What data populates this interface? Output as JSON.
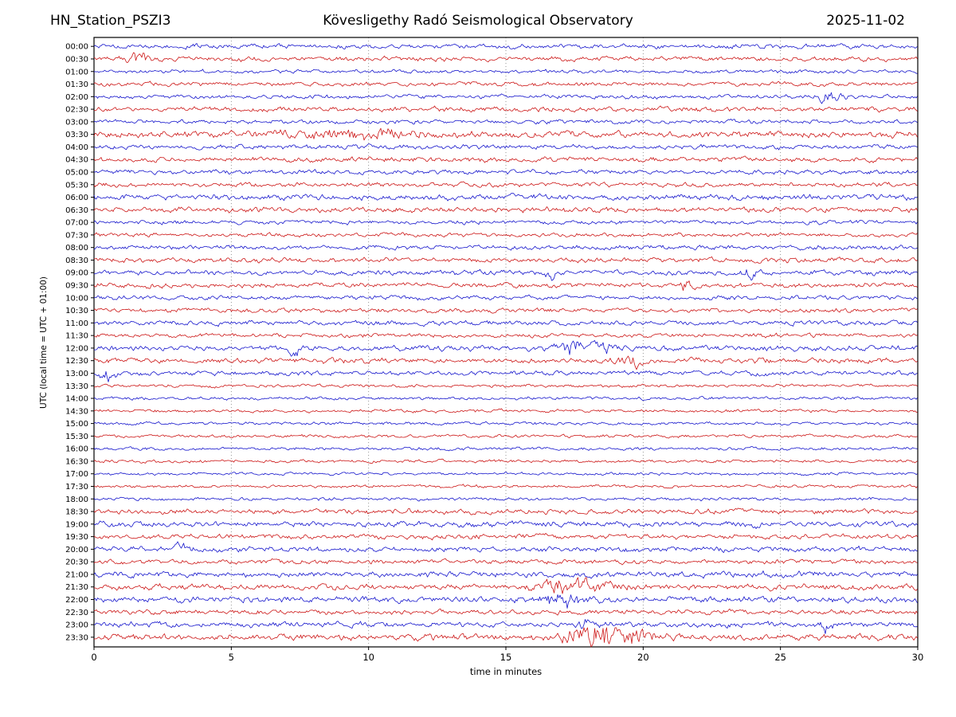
{
  "chart_data": {
    "type": "line",
    "title_left": "HN_Station_PSZI3",
    "title_center": "Kövesligethy Radó Seismological Observatory",
    "title_right": "2025-11-02",
    "xlabel": "time in minutes",
    "ylabel": "UTC (local time = UTC + 01:00)",
    "xlim": [
      0,
      30
    ],
    "x_ticks": [
      0,
      5,
      10,
      15,
      20,
      25,
      30
    ],
    "grid": "vertical-dotted",
    "legend": "none",
    "colors": {
      "blue": "#1515cc",
      "red": "#cc1515",
      "grid": "#888888",
      "frame": "#000000"
    },
    "rows": [
      {
        "label": "00:00",
        "color": "blue",
        "amplitude": 1.0
      },
      {
        "label": "00:30",
        "color": "red",
        "amplitude": 1.0
      },
      {
        "label": "01:00",
        "color": "blue",
        "amplitude": 0.8
      },
      {
        "label": "01:30",
        "color": "red",
        "amplitude": 0.9
      },
      {
        "label": "02:00",
        "color": "blue",
        "amplitude": 0.9
      },
      {
        "label": "02:30",
        "color": "red",
        "amplitude": 1.1
      },
      {
        "label": "03:00",
        "color": "blue",
        "amplitude": 0.9
      },
      {
        "label": "03:30",
        "color": "red",
        "amplitude": 1.5
      },
      {
        "label": "04:00",
        "color": "blue",
        "amplitude": 1.0
      },
      {
        "label": "04:30",
        "color": "red",
        "amplitude": 1.1
      },
      {
        "label": "05:00",
        "color": "blue",
        "amplitude": 1.0
      },
      {
        "label": "05:30",
        "color": "red",
        "amplitude": 1.0
      },
      {
        "label": "06:00",
        "color": "blue",
        "amplitude": 1.3
      },
      {
        "label": "06:30",
        "color": "red",
        "amplitude": 1.2
      },
      {
        "label": "07:00",
        "color": "blue",
        "amplitude": 0.9
      },
      {
        "label": "07:30",
        "color": "red",
        "amplitude": 0.9
      },
      {
        "label": "08:00",
        "color": "blue",
        "amplitude": 1.0
      },
      {
        "label": "08:30",
        "color": "red",
        "amplitude": 1.1
      },
      {
        "label": "09:00",
        "color": "blue",
        "amplitude": 1.1
      },
      {
        "label": "09:30",
        "color": "red",
        "amplitude": 1.1
      },
      {
        "label": "10:00",
        "color": "blue",
        "amplitude": 1.0
      },
      {
        "label": "10:30",
        "color": "red",
        "amplitude": 1.0
      },
      {
        "label": "11:00",
        "color": "blue",
        "amplitude": 1.1
      },
      {
        "label": "11:30",
        "color": "red",
        "amplitude": 0.9
      },
      {
        "label": "12:00",
        "color": "blue",
        "amplitude": 1.2
      },
      {
        "label": "12:30",
        "color": "red",
        "amplitude": 1.2
      },
      {
        "label": "13:00",
        "color": "blue",
        "amplitude": 1.0
      },
      {
        "label": "13:30",
        "color": "red",
        "amplitude": 0.7
      },
      {
        "label": "14:00",
        "color": "blue",
        "amplitude": 0.7
      },
      {
        "label": "14:30",
        "color": "red",
        "amplitude": 0.7
      },
      {
        "label": "15:00",
        "color": "blue",
        "amplitude": 0.7
      },
      {
        "label": "15:30",
        "color": "red",
        "amplitude": 0.7
      },
      {
        "label": "16:00",
        "color": "blue",
        "amplitude": 0.7
      },
      {
        "label": "16:30",
        "color": "red",
        "amplitude": 0.7
      },
      {
        "label": "17:00",
        "color": "blue",
        "amplitude": 0.65
      },
      {
        "label": "17:30",
        "color": "red",
        "amplitude": 0.7
      },
      {
        "label": "18:00",
        "color": "blue",
        "amplitude": 0.7
      },
      {
        "label": "18:30",
        "color": "red",
        "amplitude": 1.1
      },
      {
        "label": "19:00",
        "color": "blue",
        "amplitude": 1.3
      },
      {
        "label": "19:30",
        "color": "red",
        "amplitude": 1.1
      },
      {
        "label": "20:00",
        "color": "blue",
        "amplitude": 1.2
      },
      {
        "label": "20:30",
        "color": "red",
        "amplitude": 1.0
      },
      {
        "label": "21:00",
        "color": "blue",
        "amplitude": 1.3
      },
      {
        "label": "21:30",
        "color": "red",
        "amplitude": 1.3
      },
      {
        "label": "22:00",
        "color": "blue",
        "amplitude": 1.4
      },
      {
        "label": "22:30",
        "color": "red",
        "amplitude": 1.1
      },
      {
        "label": "23:00",
        "color": "blue",
        "amplitude": 1.2
      },
      {
        "label": "23:30",
        "color": "red",
        "amplitude": 1.4
      }
    ],
    "events": [
      {
        "row": 1,
        "minute": 1.6,
        "boost": 2.2,
        "width": 0.4
      },
      {
        "row": 4,
        "minute": 26.8,
        "boost": 2.5,
        "width": 0.5
      },
      {
        "row": 7,
        "minute": 9.5,
        "boost": 0.8,
        "width": 3.0
      },
      {
        "row": 18,
        "minute": 16.6,
        "boost": 3.0,
        "width": 0.15
      },
      {
        "row": 18,
        "minute": 24.0,
        "boost": 2.0,
        "width": 0.3
      },
      {
        "row": 19,
        "minute": 21.6,
        "boost": 2.8,
        "width": 0.2
      },
      {
        "row": 24,
        "minute": 7.3,
        "boost": 2.2,
        "width": 0.3
      },
      {
        "row": 24,
        "minute": 17.5,
        "boost": 2.4,
        "width": 0.8
      },
      {
        "row": 24,
        "minute": 18.6,
        "boost": 2.2,
        "width": 0.4
      },
      {
        "row": 25,
        "minute": 19.5,
        "boost": 2.2,
        "width": 0.5
      },
      {
        "row": 26,
        "minute": 0.5,
        "boost": 2.5,
        "width": 0.3
      },
      {
        "row": 40,
        "minute": 3.3,
        "boost": 2.0,
        "width": 0.3
      },
      {
        "row": 43,
        "minute": 17.5,
        "boost": 2.0,
        "width": 1.2
      },
      {
        "row": 44,
        "minute": 17.0,
        "boost": 1.8,
        "width": 0.8
      },
      {
        "row": 46,
        "minute": 17.9,
        "boost": 3.5,
        "width": 0.15
      },
      {
        "row": 46,
        "minute": 26.7,
        "boost": 2.0,
        "width": 0.3
      },
      {
        "row": 47,
        "minute": 18.2,
        "boost": 4.5,
        "width": 0.9
      },
      {
        "row": 47,
        "minute": 19.5,
        "boost": 2.5,
        "width": 0.8
      }
    ]
  }
}
